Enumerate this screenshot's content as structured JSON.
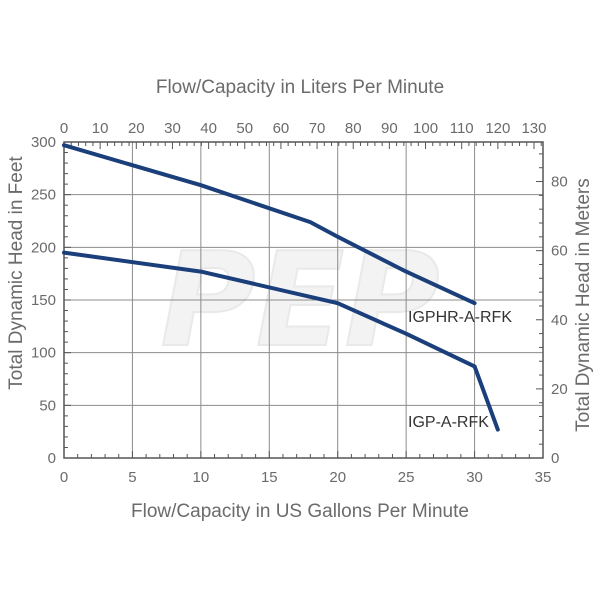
{
  "chart_data": {
    "type": "line",
    "watermark": "PEP",
    "x_bottom": {
      "label": "Flow/Capacity in US Gallons Per Minute",
      "range": [
        0,
        35
      ],
      "ticks": [
        0,
        5,
        10,
        15,
        20,
        25,
        30,
        35
      ]
    },
    "x_top": {
      "label": "Flow/Capacity in Liters Per Minute",
      "range": [
        0,
        132.49
      ],
      "ticks": [
        0,
        10,
        20,
        30,
        40,
        50,
        60,
        70,
        80,
        90,
        100,
        110,
        120,
        130
      ]
    },
    "y_left": {
      "label": "Total Dynamic Head in Feet",
      "range": [
        0,
        300
      ],
      "ticks": [
        0,
        50,
        100,
        150,
        200,
        250,
        300
      ]
    },
    "y_right": {
      "label": "Total Dynamic Head in Meters",
      "range": [
        0,
        91.44
      ],
      "ticks": [
        0,
        20,
        40,
        60,
        80
      ]
    },
    "grid": true,
    "line_color": "#1b3f7a",
    "series": [
      {
        "name": "IGPHR-A-RFK",
        "x": [
          0,
          10,
          18,
          20,
          25,
          30
        ],
        "y": [
          297,
          259,
          224,
          210,
          177,
          147
        ]
      },
      {
        "name": "IGP-A-RFK",
        "x": [
          0,
          10,
          20,
          25,
          30,
          31.7
        ],
        "y": [
          195,
          177,
          147,
          118,
          87,
          27
        ]
      }
    ]
  }
}
